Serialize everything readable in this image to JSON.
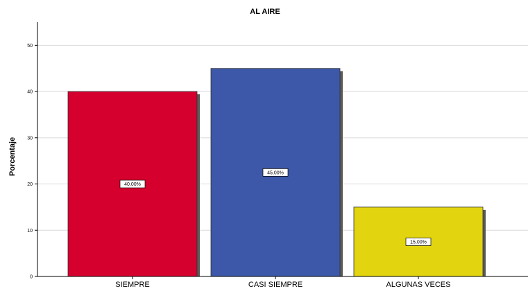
{
  "chart_data": {
    "type": "bar",
    "title": "AL AIRE",
    "xlabel": "",
    "ylabel": "Porcentaje",
    "categories": [
      "SIEMPRE",
      "CASI SIEMPRE",
      "ALGUNAS VECES"
    ],
    "values": [
      40,
      45,
      15
    ],
    "data_labels": [
      "40,00%",
      "45,00%",
      "15,00%"
    ],
    "ylim": [
      0,
      55
    ],
    "yticks": [
      0,
      10,
      20,
      30,
      40,
      50
    ],
    "grid": true,
    "colors": [
      "#d6002f",
      "#3d58a8",
      "#e2d40f"
    ],
    "shadow_color": "#5a5a5a"
  }
}
